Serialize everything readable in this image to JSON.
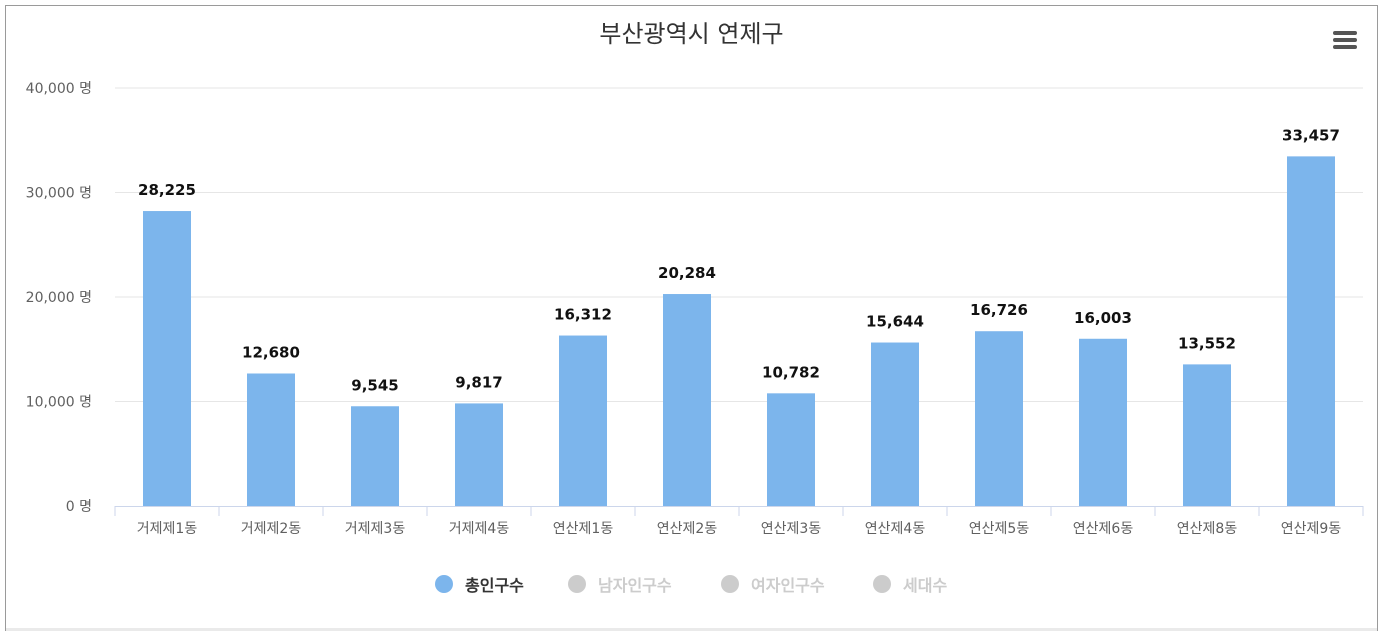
{
  "chart_data": {
    "type": "bar",
    "title": "부산광역시 연제구",
    "categories": [
      "거제제1동",
      "거제제2동",
      "거제제3동",
      "거제제4동",
      "연산제1동",
      "연산제2동",
      "연산제3동",
      "연산제4동",
      "연산제5동",
      "연산제6동",
      "연산제8동",
      "연산제9동"
    ],
    "series": [
      {
        "name": "총인구수",
        "values": [
          28225,
          12680,
          9545,
          9817,
          16312,
          20284,
          10782,
          15644,
          16726,
          16003,
          13552,
          33457
        ],
        "color": "#7cb5ec",
        "active": true
      }
    ],
    "data_labels": [
      "28,225",
      "12,680",
      "9,545",
      "9,817",
      "16,312",
      "20,284",
      "10,782",
      "15,644",
      "16,726",
      "16,003",
      "13,552",
      "33,457"
    ],
    "yticks": [
      0,
      10000,
      20000,
      30000,
      40000
    ],
    "ytick_labels": [
      "0 명",
      "10,000 명",
      "20,000 명",
      "30,000 명",
      "40,000 명"
    ],
    "ylim": [
      0,
      40000
    ],
    "grid": true,
    "legend_position": "bottom-center"
  },
  "legend": {
    "items": [
      {
        "label": "총인구수",
        "color": "#7cb5ec",
        "active": true
      },
      {
        "label": "남자인구수",
        "color": "#cccccc",
        "active": false
      },
      {
        "label": "여자인구수",
        "color": "#cccccc",
        "active": false
      },
      {
        "label": "세대수",
        "color": "#cccccc",
        "active": false
      }
    ]
  },
  "menu": {
    "icon": "hamburger-menu-icon"
  }
}
